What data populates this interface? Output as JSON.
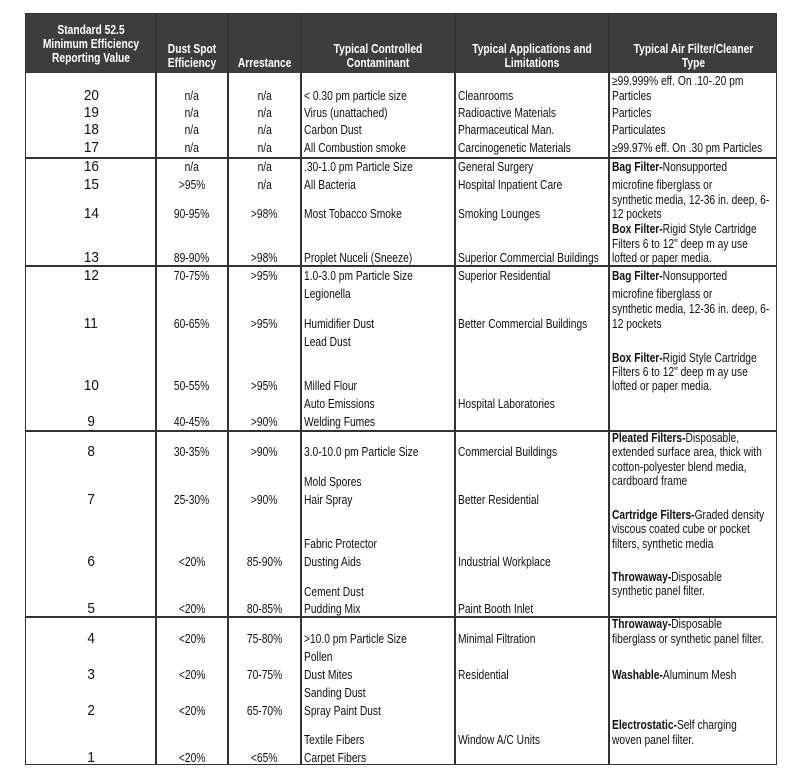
{
  "headers": [
    "Standard 52.5 Minimum Efficiency Reporting Value",
    "Dust Spot Efficiency",
    "Arrestance",
    "Typical Controlled Contaminant",
    "Typical Applications and Limitations",
    "Typical Air Filter/Cleaner Type"
  ],
  "lines": [
    {
      "merv": "20",
      "dust": "n/a",
      "arrest": "n/a",
      "contaminant": "< 0.30 pm particle size",
      "application": "Cleanrooms"
    },
    {
      "merv": "19",
      "dust": "n/a",
      "arrest": "n/a",
      "contaminant": "Virus (unattached)",
      "application": "Radioactive Materials"
    },
    {
      "merv": "18",
      "dust": "n/a",
      "arrest": "n/a",
      "contaminant": "Carbon Dust",
      "application": "Pharmaceutical Man."
    },
    {
      "merv": "17",
      "dust": "n/a",
      "arrest": "n/a",
      "contaminant": "All Combustion smoke",
      "application": "Carcinogenetic Materials"
    },
    {
      "merv": "16",
      "dust": "n/a",
      "arrest": "n/a",
      "contaminant": ".30-1.0 pm Particle Size",
      "application": "General Surgery"
    },
    {
      "merv": "15",
      "dust": ">95%",
      "arrest": "n/a",
      "contaminant": "All Bacteria",
      "application": "Hospital Inpatient Care"
    },
    {
      "merv": "14",
      "dust": "90-95%",
      "arrest": ">98%",
      "contaminant": "Most Tobacco Smoke",
      "application": "Smoking Lounges"
    },
    {
      "merv": "13",
      "dust": "89-90%",
      "arrest": ">98%",
      "contaminant": "Proplet Nuceli (Sneeze)",
      "application": "Superior Commercial Buildings"
    },
    {
      "merv": "12",
      "dust": "70-75%",
      "arrest": ">95%",
      "contaminant": "1.0-3.0 pm Particle Size",
      "application": "Superior Residential"
    },
    {
      "merv": "",
      "dust": "",
      "arrest": "",
      "contaminant": "Legionella",
      "application": ""
    },
    {
      "merv": "11",
      "dust": "60-65%",
      "arrest": ">95%",
      "contaminant": "Humidifier Dust",
      "application": "Better Commercial Buildings"
    },
    {
      "merv": "",
      "dust": "",
      "arrest": "",
      "contaminant": "Lead Dust",
      "application": ""
    },
    {
      "merv": "10",
      "dust": "50-55%",
      "arrest": ">95%",
      "contaminant": "Milled Flour",
      "application": ""
    },
    {
      "merv": "",
      "dust": "",
      "arrest": "",
      "contaminant": "Auto Emissions",
      "application": "Hospital Laboratories"
    },
    {
      "merv": "9",
      "dust": "40-45%",
      "arrest": ">90%",
      "contaminant": "Welding Fumes",
      "application": ""
    },
    {
      "merv": "8",
      "dust": "30-35%",
      "arrest": ">90%",
      "contaminant": "3.0-10.0 pm Particle Size",
      "application": "Commercial Buildings"
    },
    {
      "merv": "",
      "dust": "",
      "arrest": "",
      "contaminant": "Mold Spores",
      "application": ""
    },
    {
      "merv": "7",
      "dust": "25-30%",
      "arrest": ">90%",
      "contaminant": "Hair Spray",
      "application": "Better Residential"
    },
    {
      "merv": "",
      "dust": "",
      "arrest": "",
      "contaminant": "Fabric Protector",
      "application": ""
    },
    {
      "merv": "6",
      "dust": "<20%",
      "arrest": "85-90%",
      "contaminant": "Dusting Aids",
      "application": "Industrial Workplace"
    },
    {
      "merv": "",
      "dust": "",
      "arrest": "",
      "contaminant": "Cement Dust",
      "application": ""
    },
    {
      "merv": "5",
      "dust": "<20%",
      "arrest": "80-85%",
      "contaminant": "Pudding Mix",
      "application": "Paint Booth Inlet"
    },
    {
      "merv": "4",
      "dust": "<20%",
      "arrest": "75-80%",
      "contaminant": ">10.0 pm Particle Size",
      "application": "Minimal Filtration"
    },
    {
      "merv": "",
      "dust": "",
      "arrest": "",
      "contaminant": "Pollen",
      "application": ""
    },
    {
      "merv": "3",
      "dust": "<20%",
      "arrest": "70-75%",
      "contaminant": "Dust Mites",
      "application": "Residential"
    },
    {
      "merv": "",
      "dust": "",
      "arrest": "",
      "contaminant": "Sanding Dust",
      "application": ""
    },
    {
      "merv": "2",
      "dust": "<20%",
      "arrest": "65-70%",
      "contaminant": "Spray Paint Dust",
      "application": ""
    },
    {
      "merv": "",
      "dust": "",
      "arrest": "",
      "contaminant": "Textile Fibers",
      "application": "Window A/C Units"
    },
    {
      "merv": "1",
      "dust": "<20%",
      "arrest": "<65%",
      "contaminant": "Carpet Fibers",
      "application": ""
    }
  ],
  "filter_lines": [
    {
      "bold": "",
      "text": "≥99.999% eff. On .10-.20 pm"
    },
    {
      "bold": "",
      "text": "Particles"
    },
    {
      "bold": "",
      "text": "Particles"
    },
    {
      "bold": "",
      "text": "Particulates"
    },
    {
      "bold": "",
      "text": "≥99.97% eff. On .30 pm Particles"
    },
    {
      "bold": "Bag Filter-",
      "text": " Nonsupported"
    },
    {
      "bold": "",
      "text": "microfine fiberglass or"
    },
    {
      "bold": "",
      "text": "synthetic media, 12-36 in. deep, 6-"
    },
    {
      "bold": "",
      "text": "12 pockets"
    },
    {
      "bold": "Box Filter-",
      "text": " Rigid Style Cartridge"
    },
    {
      "bold": "",
      "text": "Filters 6 to 12\" deep m ay use"
    },
    {
      "bold": "",
      "text": "lofted or paper media."
    },
    {
      "bold": "Bag Filter-",
      "text": " Nonsupported"
    },
    {
      "bold": "",
      "text": "microfine fiberglass or"
    },
    {
      "bold": "",
      "text": "synthetic media, 12-36 in. deep, 6-"
    },
    {
      "bold": "",
      "text": "12 pockets"
    },
    {
      "bold": "Box Filter-",
      "text": " Rigid Style Cartridge"
    },
    {
      "bold": "",
      "text": "Filters 6 to 12\" deep m ay use"
    },
    {
      "bold": "",
      "text": "lofted or paper media."
    },
    {
      "bold": "Pleated Filters-",
      "text": " Disposable,"
    },
    {
      "bold": "",
      "text": "extended surface area, thick with"
    },
    {
      "bold": "",
      "text": "cotton-polyester blend media,"
    },
    {
      "bold": "",
      "text": "cardboard frame"
    },
    {
      "bold": "Cartridge Filters-",
      "text": " Graded density"
    },
    {
      "bold": "",
      "text": "viscous coated cube or pocket"
    },
    {
      "bold": "",
      "text": "filters, synthetic media"
    },
    {
      "bold": "Throwaway-",
      "text": " Disposable"
    },
    {
      "bold": "",
      "text": "synthetic panel filter."
    },
    {
      "bold": "Throwaway-",
      "text": " Disposable"
    },
    {
      "bold": "",
      "text": "fiberglass or synthetic panel filter."
    },
    {
      "bold": "Washable-",
      "text": " Aluminum Mesh"
    },
    {
      "bold": "Electrostatic-",
      "text": " Self charging"
    },
    {
      "bold": "",
      "text": "woven panel filter."
    }
  ],
  "colors": {
    "header_bg": "#3d3d3d",
    "header_text": "#ffffff",
    "grid": "#333333"
  }
}
